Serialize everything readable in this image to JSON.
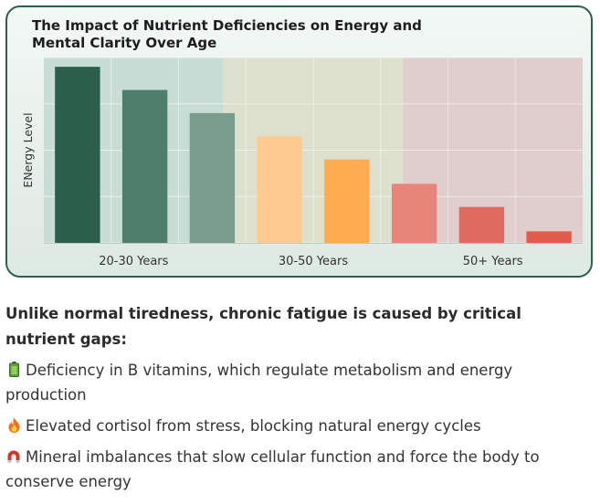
{
  "chart_data": {
    "type": "bar",
    "title": "The Impact of Nutrient Deficiencies on Energy and Mental Clarity Over Age",
    "ylabel": "ENergy Level",
    "xlabel": "",
    "ylim": [
      0,
      8
    ],
    "grid": true,
    "legend": "none",
    "groups": [
      {
        "label": "20-30 Years",
        "band_color": "#c9ddd7"
      },
      {
        "label": "30-50 Years",
        "band_color": "#dde0cd"
      },
      {
        "label": "50+ Years",
        "band_color": "#e0cdcd"
      }
    ],
    "values": [
      7.6,
      6.6,
      5.6,
      4.6,
      3.6,
      2.55,
      1.55,
      0.5
    ],
    "bar_group": [
      0,
      0,
      0,
      1,
      1,
      2,
      2,
      2
    ],
    "bar_colors": [
      "#2b5e4b",
      "#4f7e6c",
      "#7a9c8d",
      "#ffcb91",
      "#ffab4f",
      "#e7857a",
      "#de6b5e",
      "#e15c49"
    ]
  },
  "text": {
    "intro": "Unlike normal tiredness, chronic fatigue is caused by critical nutrient gaps:",
    "bullets": [
      {
        "icon": "battery-icon",
        "text": "Deficiency in B vitamins, which regulate metabolism and energy production"
      },
      {
        "icon": "fire-icon",
        "text": "Elevated cortisol from stress, blocking natural energy cycles"
      },
      {
        "icon": "magnet-icon",
        "text": "Mineral imbalances that slow cellular function and force the body to conserve energy"
      }
    ]
  }
}
